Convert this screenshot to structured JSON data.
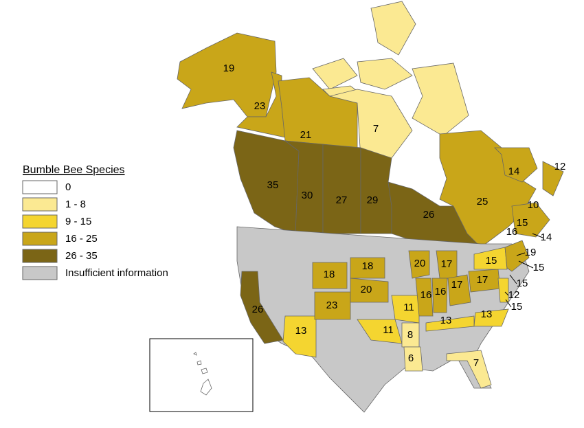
{
  "legend": {
    "title": "Bumble Bee Species",
    "items": [
      {
        "label": "0",
        "color": "#ffffff"
      },
      {
        "label": "1 - 8",
        "color": "#fbe992"
      },
      {
        "label": "9 - 15",
        "color": "#f4d530"
      },
      {
        "label": "16 - 25",
        "color": "#c9a619"
      },
      {
        "label": "26 - 35",
        "color": "#7b6516"
      },
      {
        "label": "Insufficient information",
        "color": "#c8c8c8"
      }
    ]
  },
  "regions": [
    19,
    23,
    21,
    7,
    35,
    30,
    27,
    29,
    26,
    25,
    14,
    12,
    10,
    15,
    16,
    14,
    19,
    15,
    15,
    20,
    17,
    18,
    18,
    20,
    17,
    17,
    15,
    16,
    16,
    23,
    11,
    12,
    15,
    26,
    13,
    13,
    13,
    11,
    8,
    6,
    7
  ]
}
